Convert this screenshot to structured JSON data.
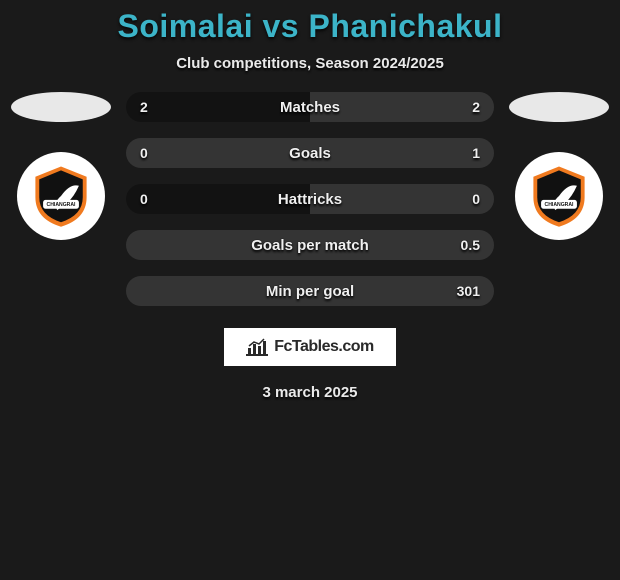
{
  "title": "Soimalai vs Phanichakul",
  "subtitle": "Club competitions, Season 2024/2025",
  "date": "3 march 2025",
  "brand": "FcTables.com",
  "colors": {
    "background": "#1a1a1a",
    "title": "#3cb4c8",
    "bar_left": "#121212",
    "bar_right": "#343434",
    "text": "#f0f0f0",
    "crest_orange": "#f07a1f",
    "crest_black": "#111111",
    "crest_white": "#ffffff"
  },
  "rows": [
    {
      "label": "Matches",
      "left": "2",
      "right": "2",
      "split": 0.5
    },
    {
      "label": "Goals",
      "left": "0",
      "right": "1",
      "split": 0.0
    },
    {
      "label": "Hattricks",
      "left": "0",
      "right": "0",
      "split": 0.5
    },
    {
      "label": "Goals per match",
      "left": "",
      "right": "0.5",
      "split": 0.0
    },
    {
      "label": "Min per goal",
      "left": "",
      "right": "301",
      "split": 0.0
    }
  ]
}
